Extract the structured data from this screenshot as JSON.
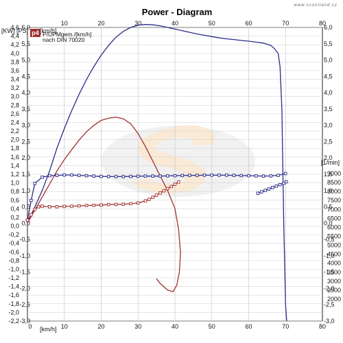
{
  "watermark": "www.scootland.cz",
  "chart_data": {
    "type": "line",
    "title": "Power - Diagram",
    "x_units": "[km/h]",
    "x_ticks": [
      0,
      10,
      20,
      30,
      40,
      50,
      60,
      70,
      80
    ],
    "xlim": [
      0,
      80
    ],
    "left_units": "[KW] [PS]",
    "kw_ticks": [
      "4,6",
      "4,4",
      "4,2",
      "4,0",
      "3,8",
      "3,6",
      "3,4",
      "3,2",
      "3,0",
      "2,8",
      "2,6",
      "2,4",
      "2,2",
      "2,0",
      "1,8",
      "1,6",
      "1,4",
      "1,2",
      "1,0",
      "0,8",
      "0,6",
      "0,4",
      "0,2",
      "0,0",
      "-0,2",
      "-0,4",
      "-0,6",
      "-0,8",
      "-1,0",
      "-1,2",
      "-1,4",
      "-1,6",
      "-1,8",
      "-2,0",
      "-2,2"
    ],
    "kw_range": [
      -2.2,
      4.6
    ],
    "ps_ticks": [
      "6,0",
      "5,5",
      "5,0",
      "4,5",
      "4,0",
      "3,5",
      "3,0",
      "2,5",
      "2,0",
      "1,5",
      "1,0",
      "0,5",
      "0,0",
      "-0,5",
      "-1,0",
      "-1,5",
      "-2,0",
      "-2,5",
      "-3,0"
    ],
    "ps_range": [
      -3.0,
      6.0
    ],
    "rpm_units": "[1/min]",
    "rpm_ticks": [
      "9000",
      "8500",
      "8000",
      "7500",
      "7000",
      "6500",
      "6000",
      "5500",
      "5000",
      "4500",
      "4000",
      "3500",
      "3000",
      "2500",
      "2000"
    ],
    "rpm_range": [
      2000,
      9000
    ],
    "legend": {
      "badge": "p4",
      "line1": "P/UPMgem./[km/h]",
      "line2": "nach DIN 70020"
    },
    "series": [
      {
        "color": "#2a2a8a",
        "axis": "ps",
        "x": [
          0,
          2,
          4,
          6,
          8,
          10,
          12,
          14,
          16,
          18,
          20,
          22,
          24,
          26,
          28,
          30,
          32,
          34,
          36,
          38,
          40,
          42,
          44,
          46,
          48,
          50,
          52,
          54,
          56,
          58,
          60,
          62,
          64,
          66,
          67,
          68,
          68.5,
          69,
          69.5,
          70,
          70.3
        ],
        "y": [
          0.0,
          0.5,
          1.0,
          1.6,
          2.3,
          2.9,
          3.45,
          3.95,
          4.4,
          4.8,
          5.15,
          5.45,
          5.7,
          5.88,
          6.0,
          6.07,
          6.09,
          6.08,
          6.05,
          6.0,
          5.95,
          5.9,
          5.85,
          5.8,
          5.76,
          5.72,
          5.68,
          5.65,
          5.63,
          5.6,
          5.58,
          5.55,
          5.52,
          5.45,
          5.35,
          5.2,
          4.8,
          3.5,
          0.0,
          -2.5,
          -3.0
        ]
      },
      {
        "color": "#a03030",
        "axis": "ps",
        "x": [
          0,
          2,
          4,
          6,
          8,
          10,
          12,
          14,
          16,
          18,
          20,
          22,
          24,
          26,
          28,
          30,
          32,
          34,
          36,
          38,
          40,
          41,
          41.5,
          41.2,
          40.5,
          39.5,
          38,
          36,
          35
        ],
        "y": [
          0.0,
          0.4,
          0.8,
          1.2,
          1.6,
          1.95,
          2.25,
          2.55,
          2.8,
          3.0,
          3.15,
          3.22,
          3.25,
          3.2,
          3.05,
          2.75,
          2.35,
          1.9,
          1.45,
          1.0,
          0.45,
          -0.2,
          -0.9,
          -1.5,
          -1.9,
          -2.1,
          -2.05,
          -1.85,
          -1.7
        ]
      },
      {
        "color": "#2a2a8a",
        "axis": "rpm",
        "markers": true,
        "x": [
          0,
          1,
          2,
          4,
          6,
          8,
          10,
          12,
          14,
          16,
          18,
          20,
          22,
          24,
          26,
          28,
          30,
          32,
          34,
          36,
          38,
          40,
          42,
          44,
          46,
          48,
          50,
          52,
          54,
          56,
          58,
          60,
          62,
          64,
          66,
          68,
          70
        ],
        "y": [
          6400,
          7500,
          8450,
          8800,
          8880,
          8900,
          8920,
          8920,
          8900,
          8880,
          8860,
          8840,
          8830,
          8830,
          8830,
          8840,
          8850,
          8860,
          8860,
          8860,
          8870,
          8880,
          8890,
          8900,
          8900,
          8910,
          8910,
          8910,
          8910,
          8900,
          8890,
          8880,
          8870,
          8860,
          8870,
          8900,
          9000
        ]
      },
      {
        "color": "#2a2a8a",
        "axis": "rpm",
        "markers": true,
        "x": [
          62.5,
          63.5,
          64.5,
          65.5,
          66.5,
          67.5,
          68.5,
          69.5,
          70.2
        ],
        "y": [
          7900,
          7980,
          8060,
          8140,
          8220,
          8300,
          8380,
          8460,
          8540
        ]
      },
      {
        "color": "#a03030",
        "axis": "rpm",
        "markers": true,
        "x": [
          0,
          1,
          2,
          3,
          4,
          6,
          8,
          10,
          12,
          14,
          16,
          18,
          20,
          22,
          24,
          26,
          28,
          30,
          32,
          33,
          34,
          35,
          36,
          37,
          38,
          39,
          40,
          41
        ],
        "y": [
          6400,
          6700,
          7000,
          7150,
          7180,
          7150,
          7150,
          7170,
          7180,
          7200,
          7220,
          7230,
          7250,
          7270,
          7280,
          7290,
          7320,
          7360,
          7480,
          7560,
          7680,
          7790,
          7920,
          8040,
          8160,
          8280,
          8400,
          8530
        ]
      }
    ]
  }
}
